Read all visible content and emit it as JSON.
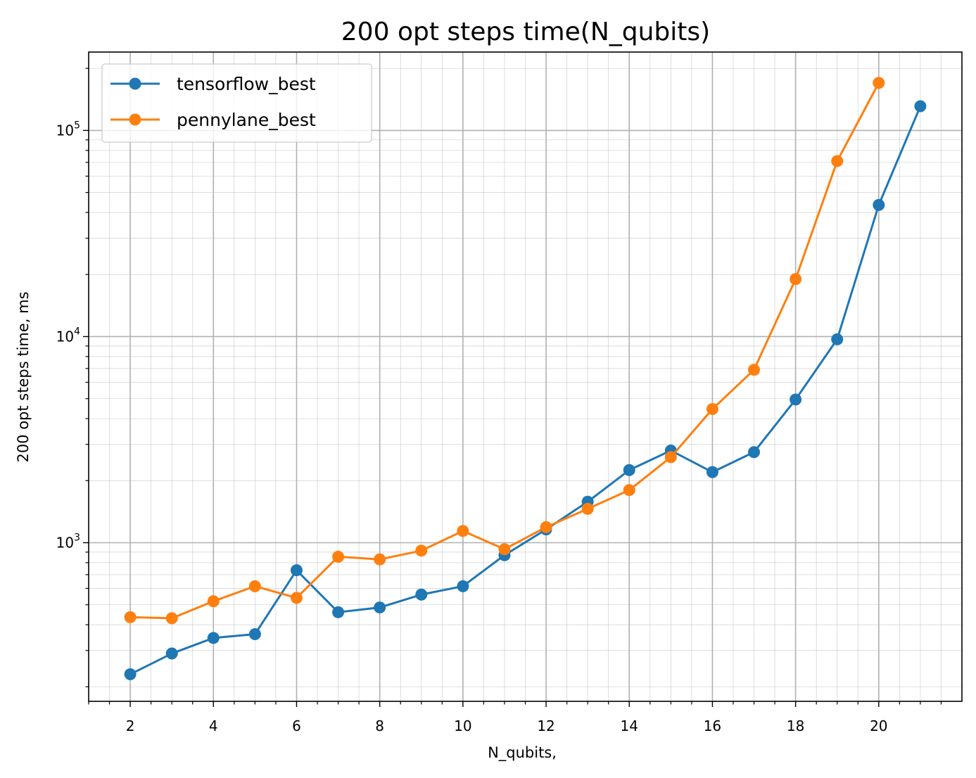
{
  "chart_data": {
    "type": "line",
    "title": "200 opt steps time(N_qubits)",
    "xlabel": "N_qubits,",
    "ylabel": "200 opt steps time, ms",
    "xlim": [
      1,
      22
    ],
    "ylim": [
      170,
      240000
    ],
    "y_scale": "log",
    "grid": true,
    "legend_position": "top-left",
    "x_ticks": [
      2,
      4,
      6,
      8,
      10,
      12,
      14,
      16,
      18,
      20
    ],
    "x_tick_labels": [
      "2",
      "4",
      "6",
      "8",
      "10",
      "12",
      "14",
      "16",
      "18",
      "20"
    ],
    "y_tick_labels": [
      {
        "base": "10",
        "exp": "3",
        "value": 1000
      },
      {
        "base": "10",
        "exp": "4",
        "value": 10000
      },
      {
        "base": "10",
        "exp": "5",
        "value": 100000
      }
    ],
    "series": [
      {
        "name": "tensorflow_best",
        "color": "#1f77b4",
        "x": [
          2,
          3,
          4,
          5,
          6,
          7,
          8,
          9,
          10,
          11,
          12,
          13,
          14,
          15,
          16,
          17,
          18,
          19,
          20,
          21
        ],
        "values": [
          230,
          290,
          345,
          360,
          735,
          460,
          485,
          560,
          615,
          870,
          1160,
          1580,
          2250,
          2800,
          2200,
          2750,
          4950,
          9700,
          43500,
          131000
        ]
      },
      {
        "name": "pennylane_best",
        "color": "#ff7f0e",
        "x": [
          2,
          3,
          4,
          5,
          6,
          7,
          8,
          9,
          10,
          11,
          12,
          13,
          14,
          15,
          16,
          17,
          18,
          19,
          20
        ],
        "values": [
          435,
          430,
          520,
          615,
          540,
          855,
          830,
          915,
          1140,
          930,
          1190,
          1460,
          1800,
          2600,
          4450,
          6900,
          19000,
          71000,
          170000
        ]
      }
    ]
  }
}
